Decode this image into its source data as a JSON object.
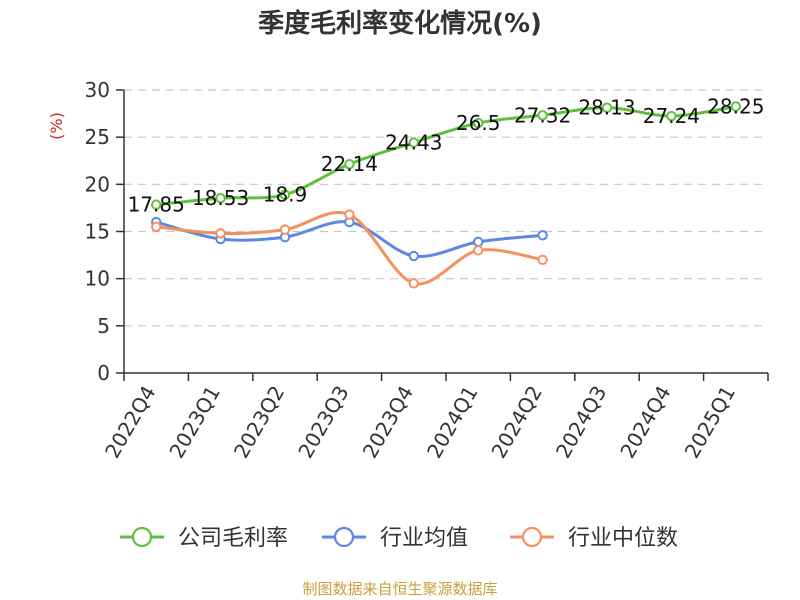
{
  "chart_data": {
    "type": "line",
    "title": "季度毛利率变化情况(%)",
    "ylabel": "(%)",
    "xlabel": "",
    "categories": [
      "2022Q4",
      "2023Q1",
      "2023Q2",
      "2023Q3",
      "2023Q4",
      "2024Q1",
      "2024Q2",
      "2024Q3",
      "2024Q4",
      "2025Q1"
    ],
    "ylim": [
      0,
      30
    ],
    "yticks": [
      0,
      5,
      10,
      15,
      20,
      25,
      30
    ],
    "grid": true,
    "legend_position": "bottom",
    "series": [
      {
        "name": "公司毛利率",
        "color": "#5ec13d",
        "values": [
          17.85,
          18.53,
          18.9,
          22.14,
          24.43,
          26.5,
          27.32,
          28.13,
          27.24,
          28.25
        ],
        "labels": [
          "17.85",
          "18.53",
          "18.9",
          "22.14",
          "24.43",
          "26.5",
          "27.32",
          "28.13",
          "27.24",
          "28.25"
        ]
      },
      {
        "name": "行业均值",
        "color": "#5b88e0",
        "values": [
          16.0,
          14.2,
          14.4,
          16.0,
          12.4,
          13.9,
          14.6,
          null,
          null,
          null
        ]
      },
      {
        "name": "行业中位数",
        "color": "#f5915e",
        "values": [
          15.5,
          14.8,
          15.2,
          16.8,
          9.5,
          13.0,
          12.0,
          null,
          null,
          null
        ]
      }
    ]
  },
  "source_text": "制图数据来自恒生聚源数据库",
  "colors": {
    "title": "#333333",
    "ylabel": "#cc2222",
    "grid": "#c8c8c8",
    "axis": "#333333",
    "source": "#c8a040"
  }
}
